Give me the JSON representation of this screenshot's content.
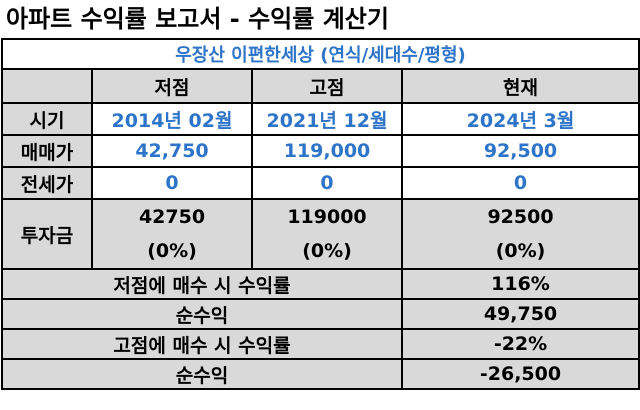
{
  "title": "아파트 수익률 보고서 - 수익률 계산기",
  "subtitle": "우장산 이편한세상  (연식/세대수/평형)",
  "columns": [
    "저점",
    "고점",
    "현재"
  ],
  "rows": {
    "period": {
      "label": "시기",
      "values": [
        "2014년 02월",
        "2021년 12월",
        "2024년 3월"
      ]
    },
    "price": {
      "label": "매매가",
      "values": [
        "42,750",
        "119,000",
        "92,500"
      ]
    },
    "jeonse": {
      "label": "전세가",
      "values": [
        "0",
        "0",
        "0"
      ]
    },
    "investment": {
      "label": "투자금",
      "values": [
        "42750",
        "119000",
        "92500"
      ],
      "ratios": [
        "(0%)",
        "(0%)",
        "(0%)"
      ]
    }
  },
  "summary": {
    "low_return_label": "저점에 매수 시 수익률",
    "low_return_value": "116%",
    "low_profit_label": "순수익",
    "low_profit_value": "49,750",
    "high_return_label": "고점에 매수 시 수익률",
    "high_return_value": "-22%",
    "high_profit_label": "순수익",
    "high_profit_value": "-26,500"
  }
}
